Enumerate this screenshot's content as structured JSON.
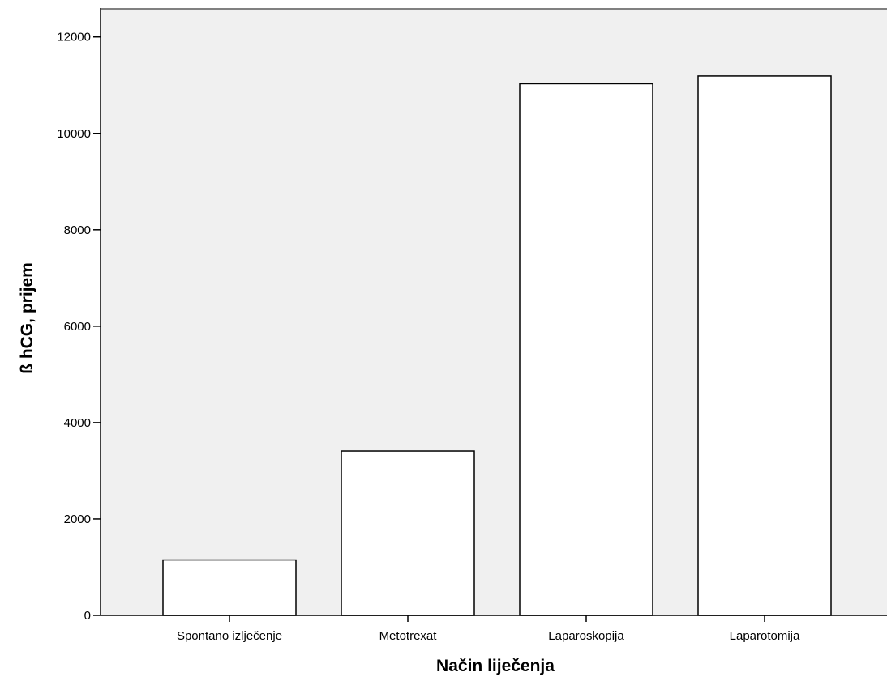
{
  "chart_data": {
    "type": "bar",
    "categories": [
      "Spontano izlječenje",
      "Metotrexat",
      "Laparoskopija",
      "Laparotomija"
    ],
    "values": [
      1150,
      3410,
      11030,
      11190
    ],
    "xlabel": "Način liječenja",
    "ylabel": "ß hCG, prijem",
    "ylim": [
      0,
      12600
    ],
    "yticks": [
      0,
      2000,
      4000,
      6000,
      8000,
      10000,
      12000
    ],
    "grid": false,
    "legend": "none",
    "colors": {
      "plot_background": "#f0f0f0",
      "bar_fill": "#ffffff",
      "bar_stroke": "#000000",
      "axis": "#000000",
      "frame": "#808080"
    }
  }
}
